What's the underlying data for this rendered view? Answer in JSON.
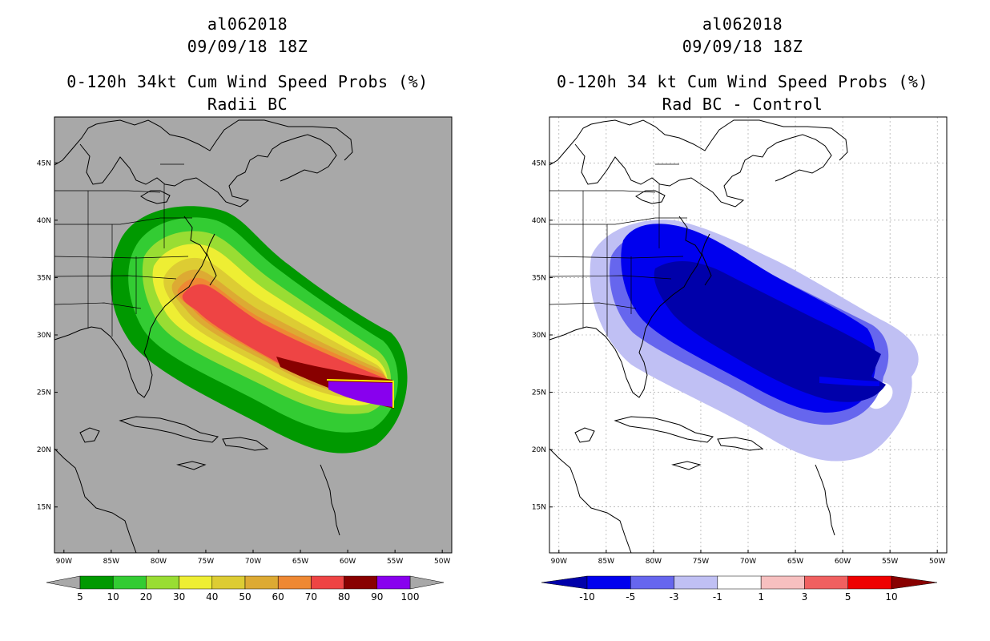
{
  "panels": [
    {
      "id": "left",
      "storm_id": "al062018",
      "datetime": "09/09/18 18Z",
      "title": "0-120h 34kt Cum Wind Speed Probs (%)",
      "subtitle": "Radii BC",
      "background": "#a8a8a8",
      "colorbar": {
        "labels": [
          "5",
          "10",
          "20",
          "30",
          "40",
          "50",
          "60",
          "70",
          "80",
          "90",
          "100"
        ],
        "colors": [
          "#009900",
          "#33cc33",
          "#99dd33",
          "#eeee33",
          "#ddcc33",
          "#ddaa33",
          "#ee8833",
          "#ee4444",
          "#880000",
          "#8800ee"
        ]
      }
    },
    {
      "id": "right",
      "storm_id": "al062018",
      "datetime": "09/09/18 18Z",
      "title": "0-120h 34 kt Cum Wind Speed Probs (%)",
      "subtitle": "Rad BC - Control",
      "background": "#ffffff",
      "colorbar": {
        "labels": [
          "-10",
          "-5",
          "-3",
          "-1",
          "1",
          "3",
          "5",
          "10"
        ],
        "colors": [
          "#0000aa",
          "#0000ee",
          "#6666ee",
          "#c0c0f4",
          "#ffffff",
          "#f7c0c0",
          "#f06060",
          "#ee0000",
          "#880000"
        ]
      }
    }
  ],
  "axes": {
    "lon_labels": [
      "90W",
      "85W",
      "80W",
      "75W",
      "70W",
      "65W",
      "60W",
      "55W",
      "50W"
    ],
    "lat_labels": [
      "45N",
      "40N",
      "35N",
      "30N",
      "25N",
      "20N",
      "15N"
    ],
    "lon_range": [
      -91,
      -49
    ],
    "lat_range": [
      11,
      49
    ]
  }
}
